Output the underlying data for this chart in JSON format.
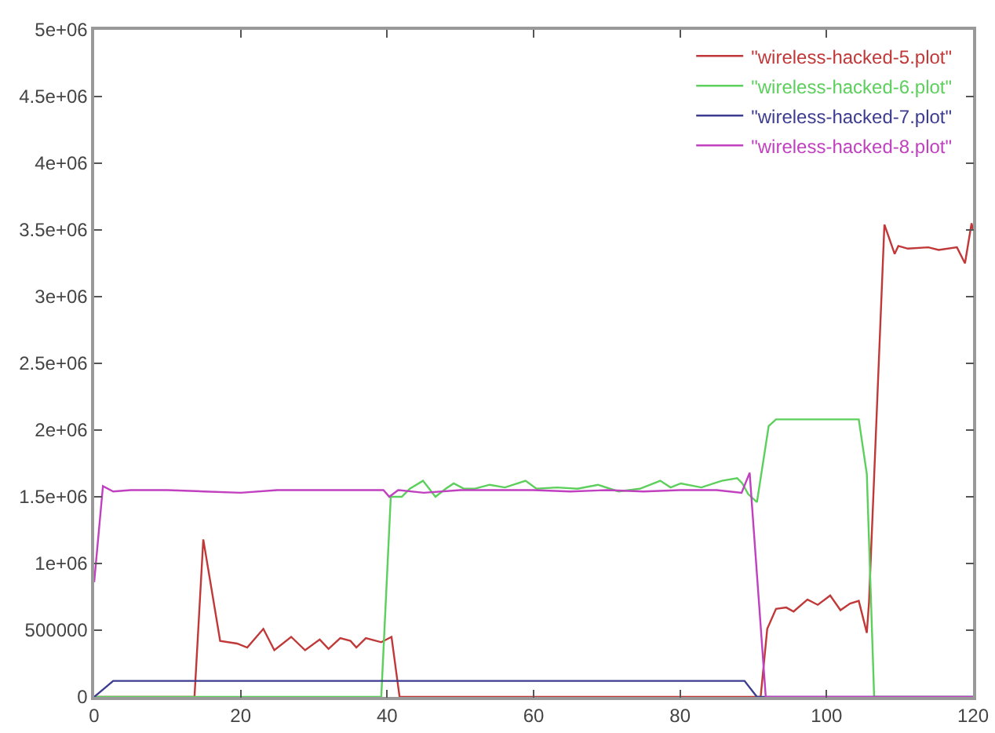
{
  "chart_data": {
    "type": "line",
    "xlim": [
      0,
      120
    ],
    "ylim": [
      0,
      5000000
    ],
    "xticks": [
      0,
      20,
      40,
      60,
      80,
      100,
      120
    ],
    "yticks": [
      0,
      500000,
      {
        "value": 1000000,
        "label": "1e+06"
      },
      {
        "value": 1500000,
        "label": "1.5e+06"
      },
      {
        "value": 2000000,
        "label": "2e+06"
      },
      {
        "value": 2500000,
        "label": "2.5e+06"
      },
      {
        "value": 3000000,
        "label": "3e+06"
      },
      {
        "value": 3500000,
        "label": "3.5e+06"
      },
      {
        "value": 4000000,
        "label": "4e+06"
      },
      {
        "value": 4500000,
        "label": "4.5e+06"
      },
      {
        "value": 5000000,
        "label": "5e+06"
      }
    ],
    "grid": false,
    "legend": "top right",
    "marker": "none",
    "line_style": "solid",
    "series": [
      {
        "name": "\"wireless-hacked-5.plot\"",
        "color": "#c03838",
        "x": [
          0,
          13.7,
          14.9,
          17.2,
          19.5,
          20.9,
          23.1,
          24.6,
          26.9,
          28.8,
          30.8,
          32.0,
          33.6,
          35.0,
          35.8,
          37.1,
          39.2,
          40.6,
          41.7,
          91.0,
          91.9,
          93.1,
          94.5,
          95.5,
          97.4,
          98.8,
          100.5,
          101.9,
          103.2,
          104.4,
          105.5,
          105.8,
          107.9,
          109.3,
          109.8,
          111.1,
          113.9,
          115.3,
          117.8,
          118.9,
          119.8,
          120
        ],
        "values": [
          0,
          0,
          1180000,
          420000,
          400000,
          370000,
          510000,
          350000,
          450000,
          350000,
          430000,
          360000,
          440000,
          420000,
          370000,
          440000,
          410000,
          450000,
          0,
          0,
          510000,
          660000,
          670000,
          640000,
          730000,
          690000,
          760000,
          650000,
          700000,
          720000,
          480000,
          710000,
          3540000,
          3320000,
          3380000,
          3360000,
          3370000,
          3350000,
          3370000,
          3250000,
          3550000,
          3500000
        ]
      },
      {
        "name": "\"wireless-hacked-6.plot\"",
        "color": "#5ccf5c",
        "x": [
          0,
          39.2,
          40.5,
          42.0,
          43.1,
          44.9,
          46.6,
          48.0,
          49.1,
          50.5,
          51.9,
          54.0,
          56.1,
          58.9,
          60.4,
          63.2,
          66.0,
          68.8,
          71.6,
          74.5,
          77.3,
          78.7,
          80.1,
          82.9,
          85.7,
          87.8,
          88.5,
          89.3,
          90.5,
          92.1,
          93.1,
          104.4,
          105.5,
          106.5,
          120
        ],
        "values": [
          0,
          0,
          1500000,
          1500000,
          1560000,
          1620000,
          1500000,
          1560000,
          1600000,
          1560000,
          1560000,
          1590000,
          1570000,
          1620000,
          1560000,
          1570000,
          1560000,
          1590000,
          1540000,
          1560000,
          1620000,
          1570000,
          1600000,
          1570000,
          1620000,
          1640000,
          1600000,
          1520000,
          1460000,
          2030000,
          2080000,
          2080000,
          1670000,
          0,
          0
        ]
      },
      {
        "name": "\"wireless-hacked-7.plot\"",
        "color": "#3c3c90",
        "x": [
          0,
          2.6,
          88.8,
          90.5,
          120
        ],
        "values": [
          0,
          120000,
          120000,
          0,
          0
        ]
      },
      {
        "name": "\"wireless-hacked-8.plot\"",
        "color": "#c040c0",
        "x": [
          0,
          1.2,
          2.6,
          5,
          10,
          15,
          20,
          25,
          30,
          35,
          39.5,
          40.3,
          41.5,
          45,
          50,
          55,
          60,
          65,
          70,
          75,
          80,
          85,
          88.4,
          89.5,
          91.7,
          120
        ],
        "values": [
          860000,
          1580000,
          1540000,
          1550000,
          1550000,
          1540000,
          1530000,
          1550000,
          1550000,
          1550000,
          1550000,
          1500000,
          1550000,
          1530000,
          1550000,
          1550000,
          1550000,
          1540000,
          1550000,
          1540000,
          1550000,
          1550000,
          1530000,
          1680000,
          0,
          0
        ]
      }
    ]
  }
}
